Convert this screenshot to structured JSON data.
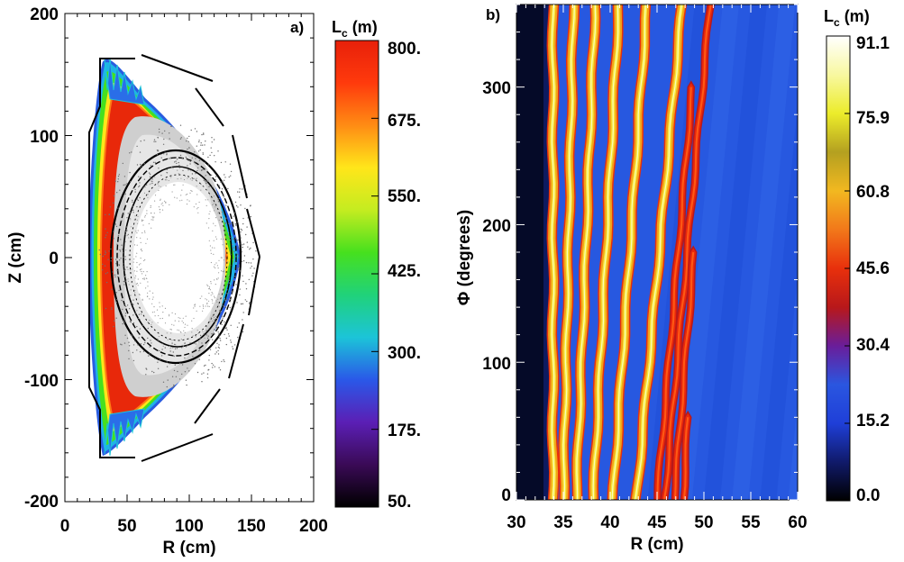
{
  "chart_data": [
    {
      "panel": "a)",
      "type": "heatmap",
      "xlabel": "R (cm)",
      "ylabel": "Z (cm)",
      "xlim": [
        0,
        200
      ],
      "ylim": [
        -200,
        200
      ],
      "x_ticks": [
        "0",
        "50",
        "100",
        "150",
        "200"
      ],
      "y_ticks": [
        "200",
        "100",
        "0",
        "-100",
        "-200"
      ],
      "colorbar": {
        "title_main": "L",
        "title_sub": "c",
        "title_unit": " (m)",
        "range": [
          50,
          800
        ],
        "tick_labels": [
          "800.",
          "675.",
          "550.",
          "425.",
          "300.",
          "175.",
          "50."
        ],
        "colors": [
          "#000000",
          "#3a0a56",
          "#5b1fb5",
          "#2a58e8",
          "#1cc4d8",
          "#20d27a",
          "#46e01e",
          "#c4ec20",
          "#ffe61a",
          "#ff8c14",
          "#ff3a0c",
          "#e8200a"
        ]
      },
      "wall_outline": {
        "inner_wall_r": 18,
        "top_limiter_z": 162,
        "bottom_limiter_z": -162
      }
    },
    {
      "panel": "b)",
      "type": "heatmap",
      "xlabel": "R (cm)",
      "ylabel": "Φ (degrees)",
      "xlim": [
        30,
        60
      ],
      "ylim": [
        0,
        360
      ],
      "x_ticks": [
        "30",
        "35",
        "40",
        "45",
        "50",
        "55",
        "60"
      ],
      "y_ticks": [
        "300",
        "200",
        "100",
        "0"
      ],
      "colorbar": {
        "title_main": "L",
        "title_sub": "c",
        "title_unit": " (m)",
        "range": [
          0,
          91.1
        ],
        "tick_labels": [
          "91.1",
          "75.9",
          "60.8",
          "45.6",
          "30.4",
          "15.2",
          "0.0"
        ],
        "colors": [
          "#000000",
          "#101a6a",
          "#1f3fd8",
          "#2a56e0",
          "#6a1d9a",
          "#b8181a",
          "#e8300c",
          "#f2781a",
          "#f2b820",
          "#b4a020",
          "#ecec2a",
          "#f8f8a0",
          "#ffffff"
        ]
      },
      "background_value": 15.2,
      "stripes": [
        {
          "r_at_phi0": 33.9,
          "dr_dphi": 0.0,
          "phi_end": 360
        },
        {
          "r_at_phi0": 35.0,
          "dr_dphi": 0.003,
          "phi_end": 360
        },
        {
          "r_at_phi0": 36.4,
          "dr_dphi": 0.0055,
          "phi_end": 360
        },
        {
          "r_at_phi0": 38.2,
          "dr_dphi": 0.0075,
          "phi_end": 360
        },
        {
          "r_at_phi0": 40.3,
          "dr_dphi": 0.01,
          "phi_end": 360
        },
        {
          "r_at_phi0": 42.8,
          "dr_dphi": 0.0135,
          "phi_end": 360
        },
        {
          "r_at_phi0": 45.8,
          "dr_dphi": 0.0135,
          "phi_end": 360
        },
        {
          "r_at_phi0": 47.8,
          "dr_dphi": 0.0085,
          "phi_end": 60
        },
        {
          "r_at_phi0": 46.8,
          "dr_dphi": 0.012,
          "phi_end": 185
        },
        {
          "r_at_phi0": 45.0,
          "dr_dphi": 0.0125,
          "phi_end": 300
        }
      ]
    }
  ]
}
